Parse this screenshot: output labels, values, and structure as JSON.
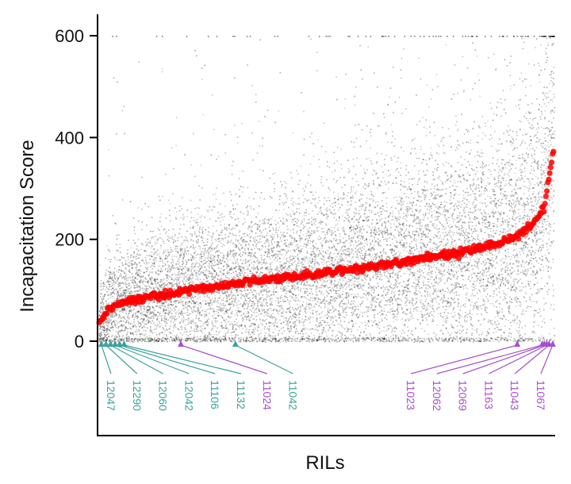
{
  "chart_data": {
    "type": "scatter",
    "xlabel": "RILs",
    "ylabel": "Incapacitation Score",
    "ylim": [
      -185,
      650
    ],
    "yticks": [
      0,
      200,
      400,
      600
    ],
    "grid": false,
    "n_rils": 480,
    "series": [
      {
        "kind": "individual_scores",
        "color": "#000000",
        "description_points": "per-RIL individual fly scores, clipped at 600",
        "score_ceiling": 600
      },
      {
        "kind": "ril_means",
        "color": "#ff0000",
        "x_fraction": [
          0.0,
          0.02,
          0.05,
          0.1,
          0.2,
          0.3,
          0.4,
          0.5,
          0.6,
          0.7,
          0.8,
          0.9,
          0.95,
          0.98,
          1.0
        ],
        "y": [
          40,
          62,
          75,
          85,
          100,
          113,
          124,
          135,
          147,
          160,
          175,
          198,
          225,
          265,
          375
        ]
      }
    ],
    "annotations": {
      "teal_color": "#3aa39a",
      "purple_color": "#a64fd1",
      "labels": [
        {
          "text": "12047",
          "group": "teal",
          "x_fraction": 0.005
        },
        {
          "text": "12290",
          "group": "teal",
          "x_fraction": 0.015
        },
        {
          "text": "12060",
          "group": "teal",
          "x_fraction": 0.025
        },
        {
          "text": "12042",
          "group": "teal",
          "x_fraction": 0.035
        },
        {
          "text": "11106",
          "group": "teal",
          "x_fraction": 0.045
        },
        {
          "text": "11132",
          "group": "teal",
          "x_fraction": 0.055
        },
        {
          "text": "11024",
          "group": "purple",
          "x_fraction": 0.18
        },
        {
          "text": "11042",
          "group": "teal",
          "x_fraction": 0.3
        },
        {
          "text": "11023",
          "group": "purple",
          "x_fraction": 0.92
        },
        {
          "text": "12062",
          "group": "purple",
          "x_fraction": 0.975
        },
        {
          "text": "12069",
          "group": "purple",
          "x_fraction": 0.98
        },
        {
          "text": "11163",
          "group": "purple",
          "x_fraction": 0.985
        },
        {
          "text": "11043",
          "group": "purple",
          "x_fraction": 0.99
        },
        {
          "text": "11067",
          "group": "purple",
          "x_fraction": 0.998
        }
      ]
    }
  }
}
